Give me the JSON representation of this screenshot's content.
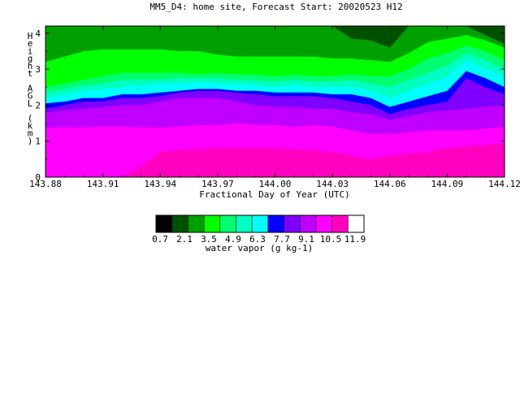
{
  "chart_data": {
    "type": "heatmap",
    "title": "MM5_D4: home site,  Forecast Start: 20020523 H12",
    "xlabel": "Fractional Day of Year (UTC)",
    "ylabel": "Height AGL (km)",
    "xlim": [
      143.88,
      144.12
    ],
    "ylim": [
      0,
      4.2
    ],
    "x_ticks": [
      "143.88",
      "143.91",
      "143.94",
      "143.97",
      "144.00",
      "144.03",
      "144.06",
      "144.09",
      "144.12"
    ],
    "y_ticks": [
      "0",
      "1",
      "2",
      "3",
      "4"
    ],
    "colorbar": {
      "label": "water vapor (g kg-1)",
      "tick_labels": [
        "0.7",
        "2.1",
        "3.5",
        "4.9",
        "6.3",
        "7.7",
        "9.1",
        "10.5",
        "11.9"
      ],
      "levels": [
        0.7,
        1.4,
        2.1,
        2.8,
        3.5,
        4.2,
        4.9,
        5.6,
        6.3,
        7.0,
        7.7,
        8.4,
        9.1,
        9.8,
        10.5,
        11.2,
        11.9
      ],
      "colors": [
        "#000000",
        "#005000",
        "#00A000",
        "#00FF00",
        "#00FF70",
        "#00FFC0",
        "#00FFFF",
        "#0000FF",
        "#8000FF",
        "#C000FF",
        "#FF00FF",
        "#FF00C0",
        "#FFFFFF"
      ]
    },
    "x": [
      143.88,
      143.89,
      143.9,
      143.91,
      143.92,
      143.93,
      143.94,
      143.95,
      143.96,
      143.97,
      143.98,
      143.99,
      144.0,
      144.01,
      144.02,
      144.03,
      144.04,
      144.05,
      144.06,
      144.07,
      144.08,
      144.09,
      144.1,
      144.11,
      144.12
    ],
    "layers": [
      {
        "level": "10.5+",
        "color": "#FF00C0",
        "top": [
          0,
          0,
          0,
          0,
          0,
          0.3,
          0.7,
          0.75,
          0.78,
          0.8,
          0.82,
          0.8,
          0.8,
          0.78,
          0.75,
          0.7,
          0.6,
          0.5,
          0.6,
          0.65,
          0.7,
          0.8,
          0.85,
          0.9,
          0.95
        ]
      },
      {
        "level": "9.8-10.5",
        "color": "#FF00FF",
        "top": [
          1.38,
          1.38,
          1.38,
          1.4,
          1.4,
          1.38,
          1.38,
          1.4,
          1.45,
          1.45,
          1.5,
          1.45,
          1.45,
          1.4,
          1.45,
          1.4,
          1.3,
          1.2,
          1.2,
          1.25,
          1.3,
          1.3,
          1.3,
          1.35,
          1.4
        ]
      },
      {
        "level": "9.1-9.8",
        "color": "#C000FF",
        "top": [
          1.8,
          1.85,
          1.9,
          1.95,
          2.0,
          2.0,
          2.1,
          2.2,
          2.2,
          2.2,
          2.1,
          2.0,
          1.95,
          1.95,
          1.9,
          1.9,
          1.8,
          1.75,
          1.6,
          1.7,
          1.8,
          1.85,
          1.9,
          1.95,
          2.0
        ]
      },
      {
        "level": "8.4-9.1",
        "color": "#8000FF",
        "top": [
          1.9,
          2.0,
          2.1,
          2.1,
          2.2,
          2.2,
          2.25,
          2.35,
          2.4,
          2.4,
          2.35,
          2.3,
          2.25,
          2.25,
          2.25,
          2.2,
          2.1,
          2.0,
          1.75,
          1.9,
          2.0,
          2.1,
          2.75,
          2.5,
          2.3
        ]
      },
      {
        "level": "7.7-8.4",
        "color": "#0000FF",
        "top": [
          2.05,
          2.1,
          2.2,
          2.2,
          2.3,
          2.3,
          2.35,
          2.4,
          2.45,
          2.45,
          2.4,
          2.4,
          2.35,
          2.35,
          2.35,
          2.3,
          2.3,
          2.2,
          1.95,
          2.1,
          2.25,
          2.4,
          2.95,
          2.75,
          2.5
        ]
      },
      {
        "level": "7.0-7.7",
        "color": "#00FFFF",
        "top": [
          2.2,
          2.3,
          2.4,
          2.45,
          2.5,
          2.55,
          2.6,
          2.6,
          2.65,
          2.6,
          2.6,
          2.55,
          2.5,
          2.55,
          2.5,
          2.5,
          2.5,
          2.4,
          2.2,
          2.4,
          2.6,
          2.8,
          3.25,
          3.0,
          2.8
        ]
      },
      {
        "level": "6.3-7.0",
        "color": "#00FFC0",
        "top": [
          2.35,
          2.45,
          2.55,
          2.6,
          2.7,
          2.7,
          2.7,
          2.75,
          2.75,
          2.75,
          2.7,
          2.7,
          2.65,
          2.7,
          2.65,
          2.65,
          2.7,
          2.6,
          2.5,
          2.7,
          2.9,
          3.1,
          3.45,
          3.25,
          3.0
        ]
      },
      {
        "level": "5.6-6.3",
        "color": "#00FF70",
        "top": [
          2.5,
          2.6,
          2.7,
          2.8,
          2.9,
          2.9,
          2.9,
          2.9,
          2.85,
          2.9,
          2.85,
          2.85,
          2.8,
          2.85,
          2.8,
          2.8,
          2.85,
          2.8,
          2.8,
          3.0,
          3.3,
          3.45,
          3.65,
          3.5,
          3.25
        ]
      },
      {
        "level": "4.9-5.6",
        "color": "#00FF00",
        "top": [
          3.2,
          3.35,
          3.5,
          3.55,
          3.55,
          3.55,
          3.55,
          3.5,
          3.5,
          3.4,
          3.35,
          3.35,
          3.35,
          3.35,
          3.35,
          3.3,
          3.3,
          3.25,
          3.2,
          3.45,
          3.75,
          3.85,
          3.95,
          3.8,
          3.6
        ]
      },
      {
        "level": "4.2-4.9",
        "color": "#00A000",
        "top": [
          4.2,
          4.2,
          4.2,
          4.2,
          4.2,
          4.2,
          4.2,
          4.2,
          4.2,
          4.2,
          4.2,
          4.2,
          4.2,
          4.2,
          4.2,
          4.2,
          4.2,
          4.2,
          4.2,
          4.2,
          4.2,
          4.2,
          4.2,
          4.2,
          4.2
        ]
      },
      {
        "level": "3.5-4.2",
        "color": "#005000",
        "top": [
          0,
          0,
          0,
          0,
          0,
          0,
          0,
          0,
          0,
          0,
          0,
          0,
          0,
          0,
          0,
          0,
          4.2,
          4.2,
          4.2,
          0,
          0,
          0,
          0,
          4.2,
          4.2
        ]
      }
    ],
    "dark_region_bottom": [
      4.2,
      4.2,
      4.2,
      4.2,
      4.2,
      4.2,
      4.2,
      4.2,
      4.2,
      4.2,
      4.2,
      4.2,
      4.2,
      4.2,
      4.2,
      4.2,
      3.85,
      3.8,
      3.6,
      4.2,
      4.2,
      4.2,
      4.2,
      3.95,
      3.7
    ],
    "low_level_patch": {
      "level": "10.5+",
      "color": "#FF00C0"
    }
  }
}
